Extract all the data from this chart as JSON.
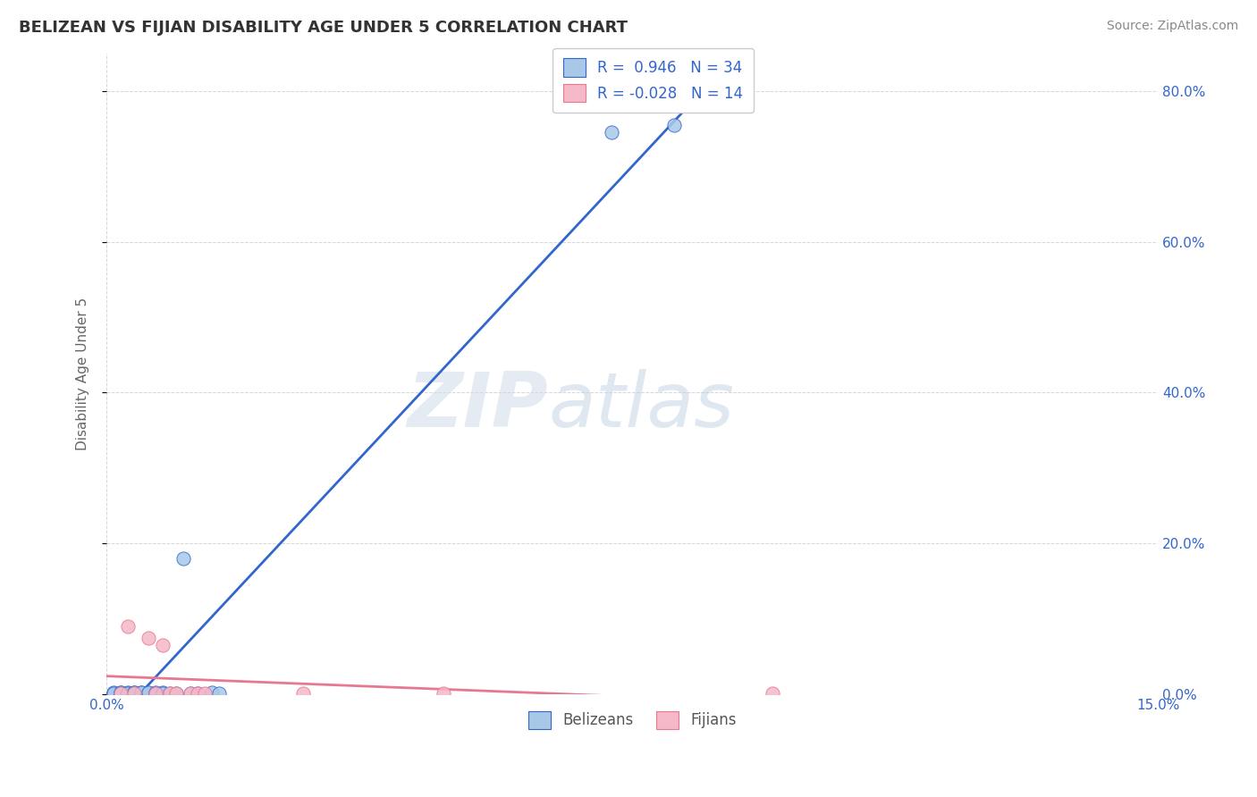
{
  "title": "BELIZEAN VS FIJIAN DISABILITY AGE UNDER 5 CORRELATION CHART",
  "source": "Source: ZipAtlas.com",
  "ylabel": "Disability Age Under 5",
  "belizean_R": 0.946,
  "belizean_N": 34,
  "fijian_R": -0.028,
  "fijian_N": 14,
  "belizean_color": "#a8c8e8",
  "fijian_color": "#f4b8c8",
  "belizean_line_color": "#3366cc",
  "fijian_line_color": "#e87890",
  "belizean_x": [
    0.001,
    0.001,
    0.001,
    0.001,
    0.002,
    0.002,
    0.002,
    0.002,
    0.002,
    0.003,
    0.003,
    0.003,
    0.003,
    0.004,
    0.004,
    0.004,
    0.005,
    0.005,
    0.005,
    0.006,
    0.006,
    0.007,
    0.007,
    0.008,
    0.008,
    0.009,
    0.01,
    0.011,
    0.012,
    0.013,
    0.015,
    0.016,
    0.072,
    0.081
  ],
  "belizean_y": [
    0.001,
    0.001,
    0.002,
    0.001,
    0.001,
    0.002,
    0.001,
    0.002,
    0.001,
    0.001,
    0.001,
    0.002,
    0.001,
    0.002,
    0.001,
    0.002,
    0.002,
    0.001,
    0.002,
    0.001,
    0.002,
    0.002,
    0.001,
    0.002,
    0.001,
    0.001,
    0.001,
    0.18,
    0.001,
    0.001,
    0.002,
    0.001,
    0.745,
    0.755
  ],
  "fijian_x": [
    0.002,
    0.003,
    0.004,
    0.006,
    0.007,
    0.008,
    0.009,
    0.01,
    0.012,
    0.013,
    0.014,
    0.028,
    0.048,
    0.095
  ],
  "fijian_y": [
    0.001,
    0.09,
    0.001,
    0.075,
    0.001,
    0.065,
    0.001,
    0.001,
    0.001,
    0.001,
    0.001,
    0.001,
    0.001,
    0.001
  ],
  "xlim": [
    0.0,
    0.15
  ],
  "ylim": [
    0.0,
    0.85
  ],
  "watermark_zip": "ZIP",
  "watermark_atlas": "atlas",
  "title_color": "#333333",
  "source_color": "#888888",
  "legend_color": "#3366cc",
  "tick_color": "#3366cc",
  "ylabel_color": "#666666",
  "grid_color": "#cccccc",
  "background_color": "#ffffff"
}
